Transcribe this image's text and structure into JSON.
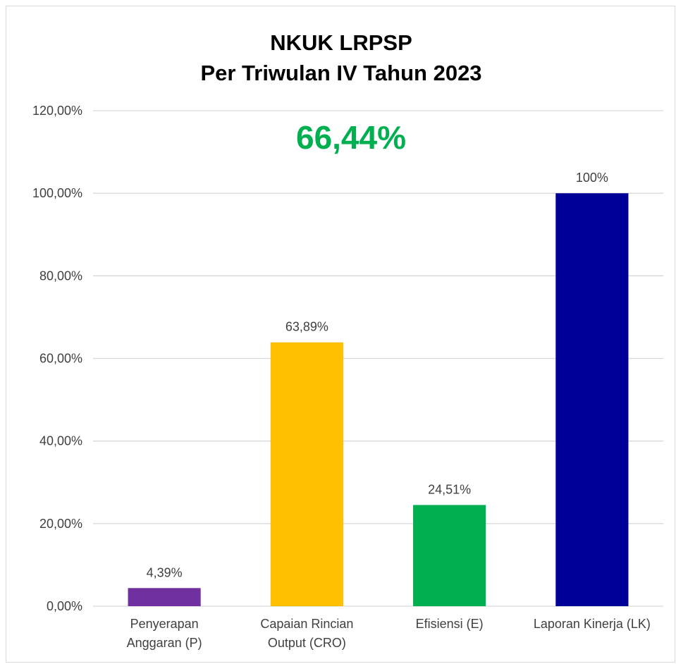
{
  "chart_data": {
    "type": "bar",
    "title": [
      "NKUK LRPSP",
      "Per Triwulan IV Tahun 2023"
    ],
    "headline_value": "66,44%",
    "categories": [
      [
        "Penyerapan",
        "Anggaran (P)"
      ],
      [
        "Capaian Rincian",
        "Output (CRO)"
      ],
      [
        "Efisiensi (E)"
      ],
      [
        "Laporan Kinerja (LK)"
      ]
    ],
    "values": [
      4.39,
      63.89,
      24.51,
      100
    ],
    "data_labels": [
      "4,39%",
      "63,89%",
      "24,51%",
      "100%"
    ],
    "bar_colors": [
      "#7030a0",
      "#ffc000",
      "#00b050",
      "#000099"
    ],
    "headline_color": "#00b050",
    "ylim": [
      0,
      120
    ],
    "yticks": [
      0,
      20,
      40,
      60,
      80,
      100,
      120
    ],
    "ytick_labels": [
      "0,00%",
      "20,00%",
      "40,00%",
      "60,00%",
      "80,00%",
      "100,00%",
      "120,00%"
    ],
    "grid": true,
    "legend": "none"
  }
}
